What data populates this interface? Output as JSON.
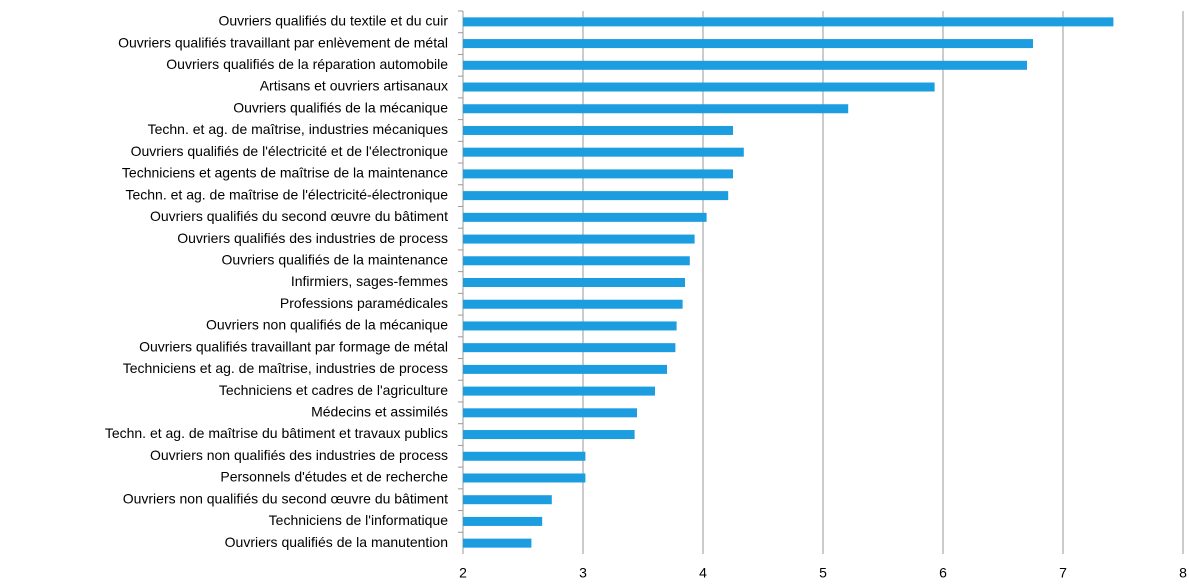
{
  "chart_data": {
    "type": "hbar",
    "categories": [
      "Ouvriers qualifiés du textile et du cuir",
      "Ouvriers qualifiés travaillant par enlèvement de métal",
      "Ouvriers qualifiés de la réparation automobile",
      "Artisans et ouvriers artisanaux",
      "Ouvriers qualifiés de la mécanique",
      "Techn. et ag. de maîtrise, industries mécaniques",
      "Ouvriers qualifiés de l'électricité et de l'électronique",
      "Techniciens et agents de maîtrise de la maintenance",
      "Techn. et ag. de maîtrise de l'électricité-électronique",
      "Ouvriers qualifiés du second œuvre du bâtiment",
      "Ouvriers qualifiés des industries de process",
      "Ouvriers qualifiés de la maintenance",
      "Infirmiers, sages-femmes",
      "Professions paramédicales",
      "Ouvriers non qualifiés de la mécanique",
      "Ouvriers qualifiés travaillant par formage de métal",
      "Techniciens et ag. de maîtrise, industries de process",
      "Techniciens et cadres de l'agriculture",
      "Médecins et assimilés",
      "Techn. et ag. de maîtrise du bâtiment et travaux publics",
      "Ouvriers non qualifiés des industries de process",
      "Personnels d'études et de recherche",
      "Ouvriers non qualifiés du second œuvre du bâtiment",
      "Techniciens de l'informatique",
      "Ouvriers qualifiés de la manutention"
    ],
    "values": [
      7.42,
      6.75,
      6.7,
      5.93,
      5.21,
      4.25,
      4.34,
      4.25,
      4.21,
      4.03,
      3.93,
      3.89,
      3.85,
      3.83,
      3.78,
      3.77,
      3.7,
      3.6,
      3.45,
      3.43,
      3.02,
      3.02,
      2.74,
      2.66,
      2.57
    ],
    "color": "#1b9de0",
    "xlim": [
      2,
      8
    ],
    "xticks": [
      2,
      3,
      4,
      5,
      6,
      7,
      8
    ],
    "grid": true
  }
}
